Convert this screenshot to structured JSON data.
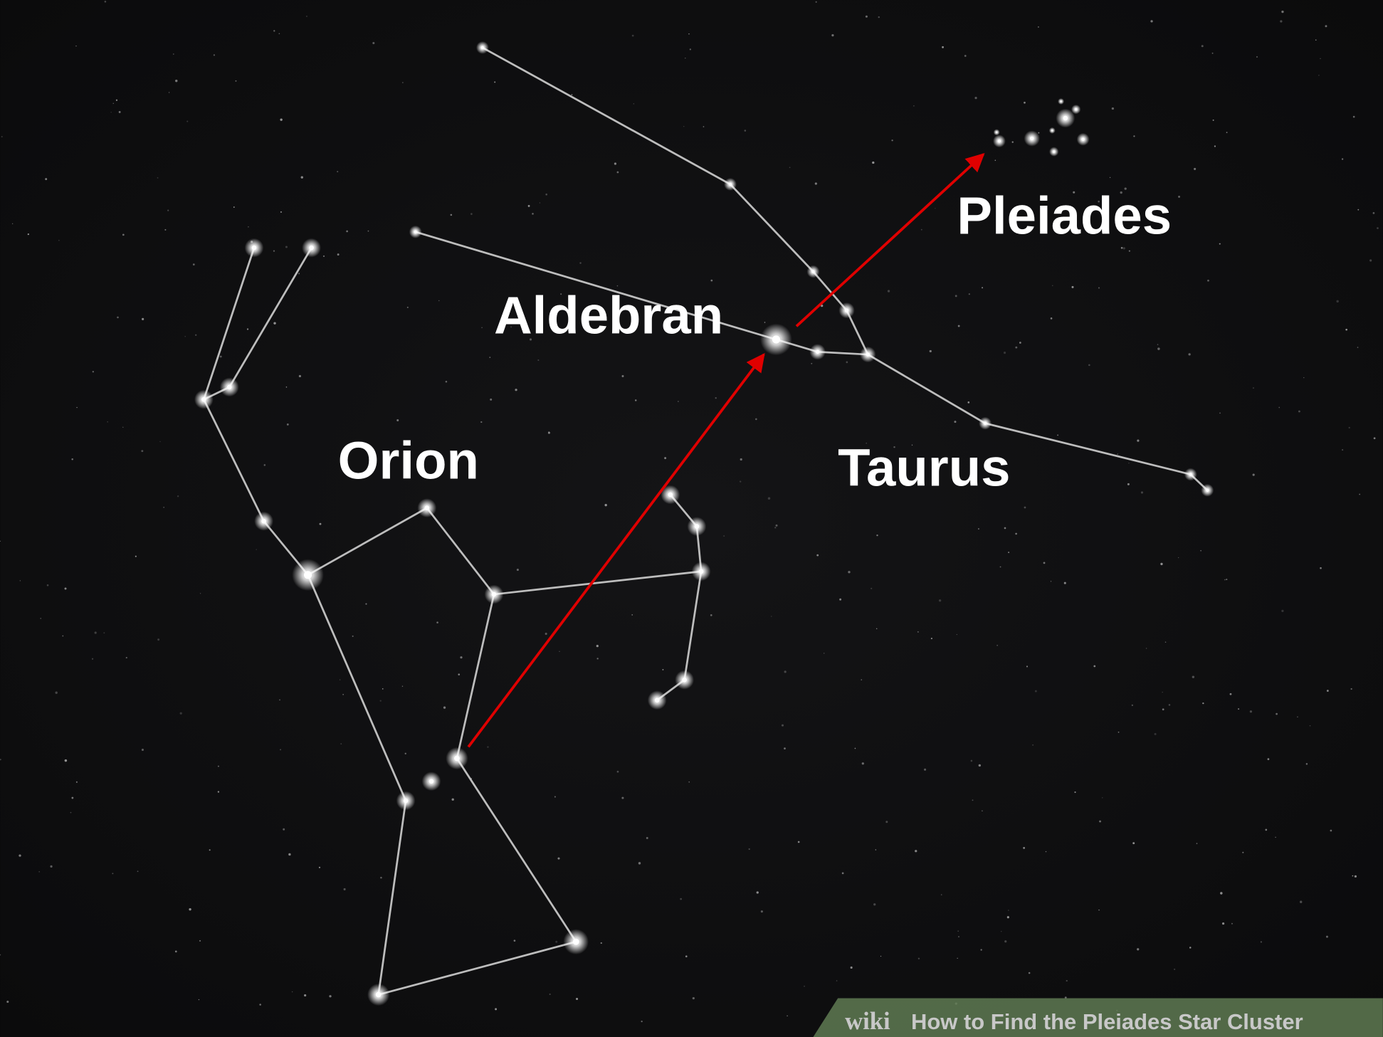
{
  "labels": {
    "pleiades": "Pleiades",
    "aldebran": "Aldebran",
    "orion": "Orion",
    "taurus": "Taurus"
  },
  "watermark": {
    "brand": "wiki",
    "title": "How to Find the Pleiades Star Cluster"
  }
}
